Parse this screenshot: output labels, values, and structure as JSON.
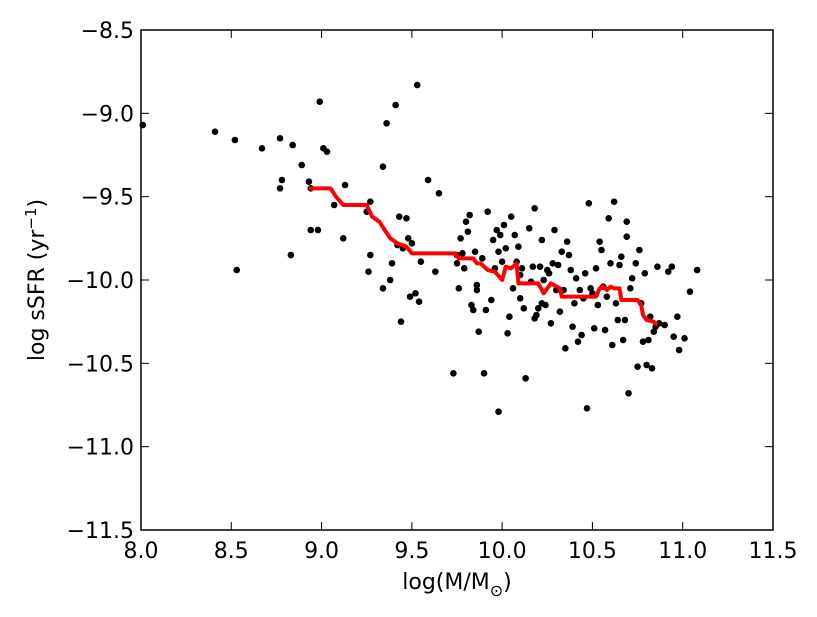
{
  "chart_data": {
    "type": "scatter",
    "xlabel": "log(M/M",
    "xlabel_sub": "⊙",
    "xlabel_close": ")",
    "ylabel": "log sSFR (yr",
    "ylabel_sup": "−1",
    "ylabel_close": ")",
    "xlim": [
      8.0,
      11.5
    ],
    "ylim": [
      -11.5,
      -8.5
    ],
    "grid": false,
    "x_ticks": [
      8.0,
      8.5,
      9.0,
      9.5,
      10.0,
      10.5,
      11.0,
      11.5
    ],
    "x_tick_labels": [
      "8.0",
      "8.5",
      "9.0",
      "9.5",
      "10.0",
      "10.5",
      "11.0",
      "11.5"
    ],
    "y_ticks": [
      -8.5,
      -9.0,
      -9.5,
      -10.0,
      -10.5,
      -11.0,
      -11.5
    ],
    "y_tick_labels": [
      "−8.5",
      "−9.0",
      "−9.5",
      "−10.0",
      "−10.5",
      "−11.0",
      "−11.5"
    ],
    "colors": {
      "points": "#000000",
      "running_median": "#ff0000",
      "axes": "#000000"
    },
    "series": [
      {
        "kind": "scatter",
        "points": [
          [
            8.01,
            -9.07
          ],
          [
            8.41,
            -9.11
          ],
          [
            8.52,
            -9.16
          ],
          [
            8.53,
            -9.94
          ],
          [
            8.67,
            -9.21
          ],
          [
            8.77,
            -9.15
          ],
          [
            8.77,
            -9.45
          ],
          [
            8.78,
            -9.4
          ],
          [
            8.83,
            -9.85
          ],
          [
            8.84,
            -9.19
          ],
          [
            8.89,
            -9.31
          ],
          [
            8.93,
            -9.41
          ],
          [
            8.94,
            -9.45
          ],
          [
            8.94,
            -9.7
          ],
          [
            8.98,
            -9.7
          ],
          [
            8.99,
            -8.93
          ],
          [
            9.01,
            -9.21
          ],
          [
            9.03,
            -9.23
          ],
          [
            9.07,
            -9.55
          ],
          [
            9.12,
            -9.75
          ],
          [
            9.13,
            -9.43
          ],
          [
            9.25,
            -9.59
          ],
          [
            9.26,
            -9.95
          ],
          [
            9.27,
            -9.53
          ],
          [
            9.27,
            -9.85
          ],
          [
            9.34,
            -9.32
          ],
          [
            9.34,
            -10.05
          ],
          [
            9.36,
            -9.06
          ],
          [
            9.38,
            -10.0
          ],
          [
            9.39,
            -9.9
          ],
          [
            9.41,
            -8.95
          ],
          [
            9.42,
            -9.79
          ],
          [
            9.43,
            -9.62
          ],
          [
            9.44,
            -10.25
          ],
          [
            9.45,
            -9.81
          ],
          [
            9.47,
            -9.63
          ],
          [
            9.48,
            -9.75
          ],
          [
            9.49,
            -10.1
          ],
          [
            9.5,
            -9.78
          ],
          [
            9.52,
            -10.08
          ],
          [
            9.53,
            -8.83
          ],
          [
            9.54,
            -10.13
          ],
          [
            9.55,
            -9.89
          ],
          [
            9.59,
            -9.4
          ],
          [
            9.63,
            -9.95
          ],
          [
            9.65,
            -9.48
          ],
          [
            9.73,
            -10.56
          ],
          [
            9.75,
            -9.85
          ],
          [
            9.75,
            -9.9
          ],
          [
            9.76,
            -10.05
          ],
          [
            9.77,
            -9.75
          ],
          [
            9.78,
            -9.84
          ],
          [
            9.79,
            -9.93
          ],
          [
            9.8,
            -9.65
          ],
          [
            9.81,
            -9.71
          ],
          [
            9.82,
            -9.61
          ],
          [
            9.83,
            -10.15
          ],
          [
            9.84,
            -10.18
          ],
          [
            9.85,
            -9.83
          ],
          [
            9.86,
            -10.03
          ],
          [
            9.86,
            -10.06
          ],
          [
            9.87,
            -10.31
          ],
          [
            9.89,
            -9.87
          ],
          [
            9.9,
            -10.56
          ],
          [
            9.91,
            -10.18
          ],
          [
            9.92,
            -9.59
          ],
          [
            9.94,
            -10.12
          ],
          [
            9.95,
            -9.76
          ],
          [
            9.96,
            -9.93
          ],
          [
            9.97,
            -9.7
          ],
          [
            9.98,
            -10.79
          ],
          [
            9.98,
            -9.83
          ],
          [
            9.99,
            -9.73
          ],
          [
            10.0,
            -9.89
          ],
          [
            10.01,
            -9.67
          ],
          [
            10.02,
            -9.81
          ],
          [
            10.03,
            -10.32
          ],
          [
            10.04,
            -10.22
          ],
          [
            10.05,
            -9.62
          ],
          [
            10.06,
            -10.05
          ],
          [
            10.07,
            -9.73
          ],
          [
            10.08,
            -9.89
          ],
          [
            10.09,
            -9.8
          ],
          [
            10.1,
            -9.97
          ],
          [
            10.1,
            -10.11
          ],
          [
            10.11,
            -9.93
          ],
          [
            10.12,
            -10.17
          ],
          [
            10.13,
            -10.59
          ],
          [
            10.15,
            -9.69
          ],
          [
            10.16,
            -10.01
          ],
          [
            10.17,
            -9.92
          ],
          [
            10.18,
            -10.23
          ],
          [
            10.18,
            -9.57
          ],
          [
            10.19,
            -10.21
          ],
          [
            10.2,
            -10.17
          ],
          [
            10.21,
            -9.92
          ],
          [
            10.22,
            -10.14
          ],
          [
            10.22,
            -9.76
          ],
          [
            10.23,
            -10.0
          ],
          [
            10.24,
            -10.15
          ],
          [
            10.25,
            -9.94
          ],
          [
            10.26,
            -9.96
          ],
          [
            10.27,
            -10.26
          ],
          [
            10.28,
            -9.9
          ],
          [
            10.29,
            -9.7
          ],
          [
            10.3,
            -10.06
          ],
          [
            10.31,
            -9.91
          ],
          [
            10.32,
            -10.19
          ],
          [
            10.33,
            -9.83
          ],
          [
            10.34,
            -10.06
          ],
          [
            10.35,
            -10.41
          ],
          [
            10.36,
            -9.77
          ],
          [
            10.37,
            -9.85
          ],
          [
            10.38,
            -9.94
          ],
          [
            10.39,
            -10.28
          ],
          [
            10.4,
            -10.14
          ],
          [
            10.41,
            -9.99
          ],
          [
            10.42,
            -10.37
          ],
          [
            10.43,
            -10.06
          ],
          [
            10.44,
            -10.33
          ],
          [
            10.45,
            -10.11
          ],
          [
            10.46,
            -9.96
          ],
          [
            10.47,
            -10.77
          ],
          [
            10.48,
            -9.54
          ],
          [
            10.49,
            -10.05
          ],
          [
            10.5,
            -10.08
          ],
          [
            10.51,
            -10.29
          ],
          [
            10.52,
            -9.93
          ],
          [
            10.53,
            -10.15
          ],
          [
            10.54,
            -9.77
          ],
          [
            10.55,
            -9.82
          ],
          [
            10.56,
            -10.04
          ],
          [
            10.57,
            -10.3
          ],
          [
            10.58,
            -10.1
          ],
          [
            10.59,
            -9.63
          ],
          [
            10.6,
            -9.9
          ],
          [
            10.61,
            -10.39
          ],
          [
            10.62,
            -9.53
          ],
          [
            10.63,
            -10.14
          ],
          [
            10.64,
            -10.24
          ],
          [
            10.65,
            -9.91
          ],
          [
            10.66,
            -9.86
          ],
          [
            10.67,
            -10.36
          ],
          [
            10.68,
            -10.24
          ],
          [
            10.69,
            -9.74
          ],
          [
            10.69,
            -9.65
          ],
          [
            10.7,
            -10.68
          ],
          [
            10.71,
            -10.05
          ],
          [
            10.72,
            -9.99
          ],
          [
            10.74,
            -9.9
          ],
          [
            10.75,
            -10.52
          ],
          [
            10.76,
            -9.82
          ],
          [
            10.77,
            -10.14
          ],
          [
            10.78,
            -10.37
          ],
          [
            10.79,
            -9.96
          ],
          [
            10.8,
            -10.51
          ],
          [
            10.81,
            -10.36
          ],
          [
            10.82,
            -10.22
          ],
          [
            10.83,
            -10.53
          ],
          [
            10.84,
            -10.31
          ],
          [
            10.85,
            -10.28
          ],
          [
            10.86,
            -9.92
          ],
          [
            10.87,
            -10.26
          ],
          [
            10.9,
            -10.27
          ],
          [
            10.92,
            -9.95
          ],
          [
            10.94,
            -9.92
          ],
          [
            10.95,
            -10.34
          ],
          [
            10.97,
            -10.22
          ],
          [
            10.98,
            -10.42
          ],
          [
            11.01,
            -10.35
          ],
          [
            11.04,
            -10.07
          ],
          [
            11.08,
            -9.94
          ]
        ]
      },
      {
        "kind": "line",
        "points": [
          [
            8.93,
            -9.45
          ],
          [
            9.05,
            -9.45
          ],
          [
            9.08,
            -9.5
          ],
          [
            9.12,
            -9.55
          ],
          [
            9.25,
            -9.55
          ],
          [
            9.28,
            -9.62
          ],
          [
            9.32,
            -9.65
          ],
          [
            9.35,
            -9.7
          ],
          [
            9.38,
            -9.75
          ],
          [
            9.42,
            -9.78
          ],
          [
            9.47,
            -9.8
          ],
          [
            9.5,
            -9.84
          ],
          [
            9.74,
            -9.84
          ],
          [
            9.76,
            -9.87
          ],
          [
            9.84,
            -9.87
          ],
          [
            9.86,
            -9.9
          ],
          [
            9.88,
            -9.9
          ],
          [
            9.92,
            -9.94
          ],
          [
            9.96,
            -9.95
          ],
          [
            10.0,
            -10.0
          ],
          [
            10.02,
            -9.92
          ],
          [
            10.05,
            -9.93
          ],
          [
            10.08,
            -9.9
          ],
          [
            10.09,
            -10.02
          ],
          [
            10.12,
            -10.02
          ],
          [
            10.2,
            -10.02
          ],
          [
            10.23,
            -10.08
          ],
          [
            10.25,
            -10.05
          ],
          [
            10.27,
            -10.02
          ],
          [
            10.32,
            -10.05
          ],
          [
            10.33,
            -10.1
          ],
          [
            10.52,
            -10.1
          ],
          [
            10.54,
            -10.05
          ],
          [
            10.56,
            -10.04
          ],
          [
            10.58,
            -10.06
          ],
          [
            10.6,
            -10.04
          ],
          [
            10.62,
            -10.05
          ],
          [
            10.65,
            -10.05
          ],
          [
            10.66,
            -10.12
          ],
          [
            10.75,
            -10.12
          ],
          [
            10.77,
            -10.15
          ],
          [
            10.78,
            -10.21
          ],
          [
            10.8,
            -10.24
          ],
          [
            10.84,
            -10.25
          ],
          [
            10.86,
            -10.27
          ]
        ]
      }
    ]
  }
}
